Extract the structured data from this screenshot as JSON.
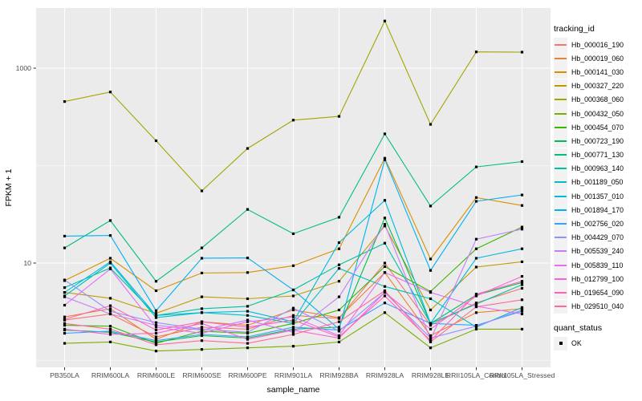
{
  "figure": {
    "y_axis": {
      "title": "FPKM + 1"
    },
    "x_axis": {
      "title": "sample_name"
    },
    "legend": {
      "tracking_title": "tracking_id",
      "quant_title": "quant_status",
      "quant_ok_label": "OK"
    },
    "colors": {
      "panel_bg": "#EBEBEB",
      "grid": "#FFFFFF",
      "tick_label": "#4D4D4D",
      "axis_title": "#000000",
      "tick_mark": "#333333",
      "legend_key_bg": "#F2F2F2",
      "point": "#000000"
    }
  },
  "chart_data": {
    "type": "line",
    "title": "",
    "xlabel": "sample_name",
    "ylabel": "FPKM + 1",
    "y_scale": "log10",
    "ylim": [
      0.85,
      4200
    ],
    "y_major_breaks": [
      10,
      1000
    ],
    "y_minor_breaks": [
      1,
      100
    ],
    "y_tick_labels": [
      {
        "value": 10,
        "label": "10"
      },
      {
        "value": 1000,
        "label": "1000"
      }
    ],
    "grid": true,
    "legend_position": "right",
    "point_marker": "filled-square-black",
    "categories": [
      "PB350LA",
      "RRIM600LA",
      "RRIM600LE",
      "RRIM600SE",
      "RRIM600PE",
      "RRIM901LA",
      "RRIM928BA",
      "RRIM928LA",
      "RRIM928LE",
      "RRII105LA_Control",
      "RRII105LA_Stressed"
    ],
    "series": [
      {
        "name": "Hb_000016_190",
        "color": "#F8766D",
        "values": [
          2.6,
          3.0,
          1.75,
          2.2,
          2.1,
          2.9,
          2.7,
          10,
          2.3,
          3.9,
          5.5
        ]
      },
      {
        "name": "Hb_000019_060",
        "color": "#EA8331",
        "values": [
          2.8,
          3.4,
          1.65,
          2.5,
          2.3,
          3.3,
          2.75,
          8.0,
          1.8,
          3.1,
          3.4
        ]
      },
      {
        "name": "Hb_000141_030",
        "color": "#D89000",
        "values": [
          6.6,
          11.2,
          5.2,
          7.9,
          8.0,
          9.4,
          14,
          119,
          11,
          47,
          39
        ]
      },
      {
        "name": "Hb_000327_220",
        "color": "#C09B00",
        "values": [
          5.0,
          4.35,
          3.05,
          4.5,
          4.3,
          4.6,
          6.5,
          24,
          3.3,
          9.1,
          10.3
        ]
      },
      {
        "name": "Hb_000368_060",
        "color": "#A3A500",
        "values": [
          455,
          570,
          180,
          55,
          150,
          293,
          320,
          3050,
          265,
          1470,
          1460
        ]
      },
      {
        "name": "Hb_000432_050",
        "color": "#7CAE00",
        "values": [
          1.5,
          1.55,
          1.25,
          1.3,
          1.35,
          1.4,
          1.55,
          3.1,
          1.35,
          2.1,
          2.1
        ]
      },
      {
        "name": "Hb_000454_070",
        "color": "#39B600",
        "values": [
          2.3,
          2.25,
          1.5,
          2.0,
          1.9,
          2.4,
          3.3,
          9.2,
          5.1,
          14,
          23.4
        ]
      },
      {
        "name": "Hb_000723_190",
        "color": "#00BB4E",
        "values": [
          2.05,
          1.95,
          1.55,
          1.8,
          1.7,
          2.1,
          2.2,
          29,
          2.4,
          4.7,
          6.3
        ]
      },
      {
        "name": "Hb_000771_130",
        "color": "#00BF7D",
        "values": [
          14.3,
          27.3,
          6.5,
          14.3,
          35.5,
          20,
          29.5,
          212,
          38.5,
          97,
          110
        ]
      },
      {
        "name": "Hb_000963_140",
        "color": "#00C1A3",
        "values": [
          5.6,
          8.9,
          2.9,
          3.4,
          3.6,
          5.3,
          9.6,
          16,
          2.4,
          3.8,
          6.0
        ]
      },
      {
        "name": "Hb_001189_050",
        "color": "#00BFC4",
        "values": [
          4.6,
          10.0,
          2.75,
          3.1,
          2.9,
          2.4,
          8.8,
          5.75,
          4.3,
          2.2,
          3.5
        ]
      },
      {
        "name": "Hb_001357_010",
        "color": "#00BAE0",
        "values": [
          5.0,
          10.3,
          2.9,
          3.1,
          3.2,
          2.5,
          16.2,
          44,
          2.4,
          11.2,
          14
        ]
      },
      {
        "name": "Hb_001894_170",
        "color": "#00B0F6",
        "values": [
          18.9,
          19.2,
          3.25,
          11.2,
          11.3,
          5.3,
          2.1,
          115,
          8.4,
          43,
          50
        ]
      },
      {
        "name": "Hb_002756_020",
        "color": "#35A2FF",
        "values": [
          1.9,
          2.0,
          1.6,
          1.85,
          1.75,
          2.2,
          2.05,
          3.9,
          2.4,
          2.3,
          3.2
        ]
      },
      {
        "name": "Hb_004429_070",
        "color": "#9590FF",
        "values": [
          6.7,
          3.2,
          2.45,
          2.1,
          1.95,
          3.45,
          2.0,
          5.0,
          1.7,
          2.25,
          3.3
        ]
      },
      {
        "name": "Hb_005539_240",
        "color": "#C77CFF",
        "values": [
          4.5,
          3.0,
          2.3,
          2.05,
          2.6,
          1.95,
          4.5,
          25,
          1.65,
          17.6,
          22.3
        ]
      },
      {
        "name": "Hb_005839_110",
        "color": "#E76BF3",
        "values": [
          3.7,
          8.7,
          2.2,
          1.9,
          2.5,
          2.8,
          1.8,
          8.0,
          5.0,
          3.6,
          3.0
        ]
      },
      {
        "name": "Hb_012799_100",
        "color": "#FA62DB",
        "values": [
          2.1,
          1.85,
          1.9,
          2.4,
          1.65,
          2.05,
          1.7,
          5.0,
          2.1,
          4.6,
          7.3
        ]
      },
      {
        "name": "Hb_019654_090",
        "color": "#FF62BC",
        "values": [
          2.65,
          3.65,
          2.05,
          2.5,
          2.2,
          2.6,
          1.75,
          4.6,
          1.6,
          4.8,
          6.5
        ]
      },
      {
        "name": "Hb_029510_040",
        "color": "#FF6A98",
        "values": [
          2.4,
          2.1,
          1.45,
          1.6,
          1.5,
          1.85,
          2.5,
          5.2,
          1.55,
          3.55,
          4.2
        ]
      }
    ],
    "quant_status": {
      "title": "quant_status",
      "items": [
        "OK"
      ]
    }
  }
}
